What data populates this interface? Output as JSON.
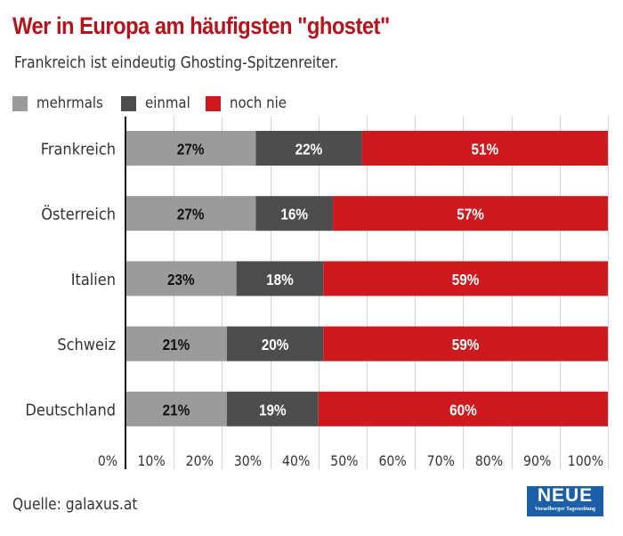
{
  "chart_data": {
    "type": "bar",
    "orientation": "horizontal",
    "stacked": true,
    "title": "Wer in Europa am häufigsten \"ghostet\"",
    "subtitle": "Frankreich ist eindeutig Ghosting-Spitzenreiter.",
    "xlabel": "",
    "ylabel": "",
    "xlim": [
      0,
      100
    ],
    "grid": true,
    "legend_position": "top-left",
    "categories": [
      "Frankreich",
      "Österreich",
      "Italien",
      "Schweiz",
      "Deutschland"
    ],
    "series": [
      {
        "name": "mehrmals",
        "color": "#9b9b9b",
        "label_color": "#111111",
        "values": [
          27,
          27,
          23,
          21,
          21
        ]
      },
      {
        "name": "einmal",
        "color": "#4d4d4d",
        "label_color": "#ffffff",
        "values": [
          22,
          16,
          18,
          20,
          19
        ]
      },
      {
        "name": "noch nie",
        "color": "#cc1a1f",
        "label_color": "#ffffff",
        "values": [
          51,
          57,
          59,
          59,
          60
        ]
      }
    ],
    "x_ticks": [
      0,
      10,
      20,
      30,
      40,
      50,
      60,
      70,
      80,
      90,
      100
    ],
    "x_tick_labels": [
      "0%",
      "10%",
      "20%",
      "30%",
      "40%",
      "50%",
      "60%",
      "70%",
      "80%",
      "90%",
      "100%"
    ],
    "value_suffix": "%"
  },
  "footer": {
    "source": "Quelle: galaxus.at",
    "logo_title": "NEUE",
    "logo_subtitle": "Vorarlberger Tageszeitung"
  }
}
